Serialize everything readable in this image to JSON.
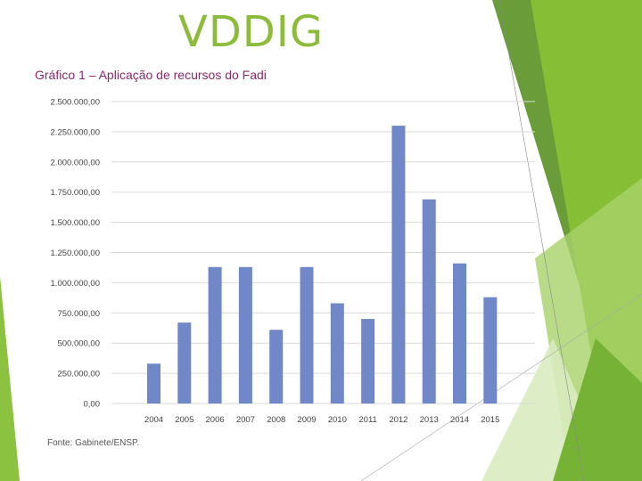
{
  "slide": {
    "title": "VDDIG",
    "colors": {
      "title": "#8dbb3a",
      "bar": "#7088c8",
      "accent_green": "#7ab52e",
      "chart_title": "#8a2a6a"
    }
  },
  "chart_data": {
    "type": "bar",
    "title": "Gráfico 1 – Aplicação de recursos do Fadi",
    "categories": [
      "2004",
      "2005",
      "2006",
      "2007",
      "2008",
      "2009",
      "2010",
      "2011",
      "2012",
      "2013",
      "2014",
      "2015"
    ],
    "values": [
      330000,
      670000,
      1130000,
      1130000,
      610000,
      1130000,
      830000,
      700000,
      2300000,
      1690000,
      1160000,
      880000
    ],
    "ylim": [
      0,
      2500000
    ],
    "yticks": [
      "0,00",
      "250.000,00",
      "500.000,00",
      "750.000,00",
      "1.000.000,00",
      "1.250.000,00",
      "1.500.000,00",
      "1.750.000,00",
      "2.000.000,00",
      "2.250.000,00",
      "2.500.000,00"
    ],
    "xlabel": "",
    "ylabel": "",
    "grid": true,
    "legend": "none",
    "source": "Fonte: Gabinete/ENSP."
  }
}
